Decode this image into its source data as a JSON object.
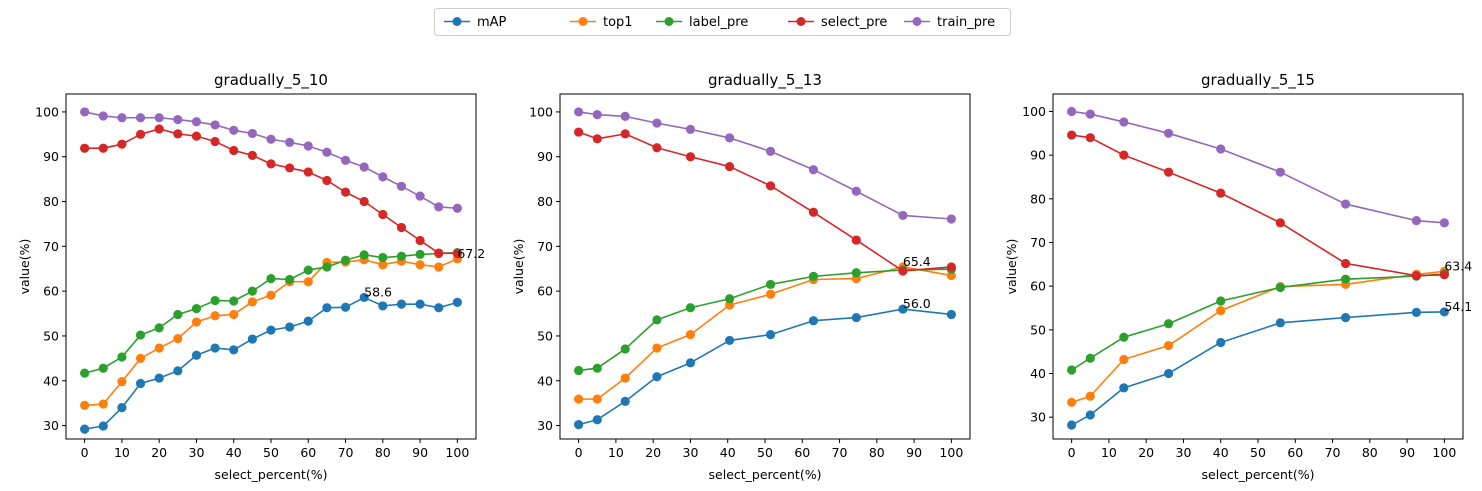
{
  "legend": {
    "entries": [
      {
        "name": "mAP",
        "color": "#1f77b4"
      },
      {
        "name": "top1",
        "color": "#ff7f0e"
      },
      {
        "name": "label_pre",
        "color": "#2ca02c"
      },
      {
        "name": "select_pre",
        "color": "#d62728"
      },
      {
        "name": "train_pre",
        "color": "#9467bd"
      }
    ]
  },
  "chart_data": [
    {
      "type": "line",
      "title": "gradually_5_10",
      "xlabel": "select_percent(%)",
      "ylabel": "value(%)",
      "xlim": [
        -5,
        105
      ],
      "ylim": [
        27,
        104
      ],
      "xticks": [
        0,
        10,
        20,
        30,
        40,
        50,
        60,
        70,
        80,
        90,
        100
      ],
      "yticks": [
        30,
        40,
        50,
        60,
        70,
        80,
        90,
        100
      ],
      "x": [
        0,
        5,
        10,
        15,
        20,
        25,
        30,
        35,
        40,
        45,
        50,
        55,
        60,
        65,
        70,
        75,
        80,
        85,
        90,
        95,
        100
      ],
      "series": [
        {
          "name": "mAP",
          "values": [
            29.2,
            29.9,
            34.0,
            39.4,
            40.6,
            42.2,
            45.7,
            47.3,
            46.9,
            49.3,
            51.3,
            52.0,
            53.3,
            56.3,
            56.4,
            58.6,
            56.7,
            57.1,
            57.1,
            56.3,
            57.5
          ]
        },
        {
          "name": "top1",
          "values": [
            34.5,
            34.8,
            39.8,
            45.0,
            47.3,
            49.4,
            53.1,
            54.5,
            54.8,
            57.6,
            59.1,
            62.1,
            62.1,
            66.4,
            66.5,
            67.0,
            65.9,
            66.7,
            65.9,
            65.4,
            67.2
          ]
        },
        {
          "name": "label_pre",
          "values": [
            41.7,
            42.8,
            45.3,
            50.2,
            51.8,
            54.8,
            56.1,
            57.9,
            57.8,
            60.0,
            62.8,
            62.6,
            64.7,
            65.4,
            66.9,
            68.1,
            67.5,
            67.8,
            68.2,
            68.4,
            68.6
          ]
        },
        {
          "name": "select_pre",
          "values": [
            91.9,
            91.9,
            92.8,
            95.0,
            96.2,
            95.1,
            94.6,
            93.4,
            91.4,
            90.3,
            88.4,
            87.5,
            86.6,
            84.7,
            82.1,
            80.0,
            77.1,
            74.2,
            71.3,
            68.5,
            68.4
          ]
        },
        {
          "name": "train_pre",
          "values": [
            100.0,
            99.1,
            98.7,
            98.7,
            98.7,
            98.3,
            97.8,
            97.1,
            95.9,
            95.2,
            93.9,
            93.2,
            92.4,
            91.0,
            89.2,
            87.7,
            85.5,
            83.4,
            81.2,
            78.8,
            78.5
          ]
        }
      ],
      "annotations": [
        {
          "text": "58.6",
          "x": 75,
          "y": 58.6
        },
        {
          "text": "67.2",
          "x": 100,
          "y": 67.2
        }
      ]
    },
    {
      "type": "line",
      "title": "gradually_5_13",
      "xlabel": "select_percent(%)",
      "ylabel": "value(%)",
      "xlim": [
        -5,
        105
      ],
      "ylim": [
        27,
        104
      ],
      "xticks": [
        0,
        10,
        20,
        30,
        40,
        50,
        60,
        70,
        80,
        90,
        100
      ],
      "yticks": [
        30,
        40,
        50,
        60,
        70,
        80,
        90,
        100
      ],
      "x": [
        0,
        5,
        12.5,
        21,
        30,
        40.5,
        51.5,
        63,
        74.5,
        87,
        100
      ],
      "series": [
        {
          "name": "mAP",
          "values": [
            30.2,
            31.3,
            35.4,
            40.9,
            44.0,
            49.0,
            50.3,
            53.4,
            54.1,
            56.0,
            54.8
          ]
        },
        {
          "name": "top1",
          "values": [
            35.9,
            35.9,
            40.6,
            47.3,
            50.3,
            56.9,
            59.3,
            62.6,
            62.8,
            65.4,
            63.5
          ]
        },
        {
          "name": "label_pre",
          "values": [
            42.3,
            42.8,
            47.1,
            53.6,
            56.3,
            58.3,
            61.5,
            63.3,
            64.1,
            64.7,
            64.9
          ]
        },
        {
          "name": "select_pre",
          "values": [
            95.5,
            94.0,
            95.1,
            92.0,
            90.0,
            87.8,
            83.5,
            77.6,
            71.4,
            64.5,
            65.4
          ]
        },
        {
          "name": "train_pre",
          "values": [
            100.0,
            99.4,
            99.0,
            97.5,
            96.1,
            94.2,
            91.2,
            87.1,
            82.3,
            76.9,
            76.1
          ]
        }
      ],
      "annotations": [
        {
          "text": "65.4",
          "x": 87,
          "y": 65.4
        },
        {
          "text": "56.0",
          "x": 87,
          "y": 56.0
        }
      ]
    },
    {
      "type": "line",
      "title": "gradually_5_15",
      "xlabel": "select_percent(%)",
      "ylabel": "value(%)",
      "xlim": [
        -5,
        105
      ],
      "ylim": [
        25,
        104
      ],
      "xticks": [
        0,
        10,
        20,
        30,
        40,
        50,
        60,
        70,
        80,
        90,
        100
      ],
      "yticks": [
        30,
        40,
        50,
        60,
        70,
        80,
        90,
        100
      ],
      "x": [
        0,
        5,
        14,
        26,
        40,
        56,
        73.5,
        92.5,
        100
      ],
      "series": [
        {
          "name": "mAP",
          "values": [
            28.2,
            30.5,
            36.7,
            40.0,
            47.1,
            51.6,
            52.8,
            54.0,
            54.1
          ]
        },
        {
          "name": "top1",
          "values": [
            33.4,
            34.8,
            43.2,
            46.4,
            54.4,
            59.9,
            60.4,
            62.7,
            63.4
          ]
        },
        {
          "name": "label_pre",
          "values": [
            40.8,
            43.5,
            48.3,
            51.4,
            56.6,
            59.7,
            61.6,
            62.3,
            62.8
          ]
        },
        {
          "name": "select_pre",
          "values": [
            94.6,
            94.0,
            90.0,
            86.1,
            81.3,
            74.5,
            65.2,
            62.4,
            62.6
          ]
        },
        {
          "name": "train_pre",
          "values": [
            100.0,
            99.4,
            97.6,
            95.0,
            91.4,
            86.1,
            78.8,
            75.0,
            74.5
          ]
        }
      ],
      "annotations": [
        {
          "text": "63.4",
          "x": 100,
          "y": 63.4
        },
        {
          "text": "54.1",
          "x": 100,
          "y": 54.1
        }
      ]
    }
  ]
}
